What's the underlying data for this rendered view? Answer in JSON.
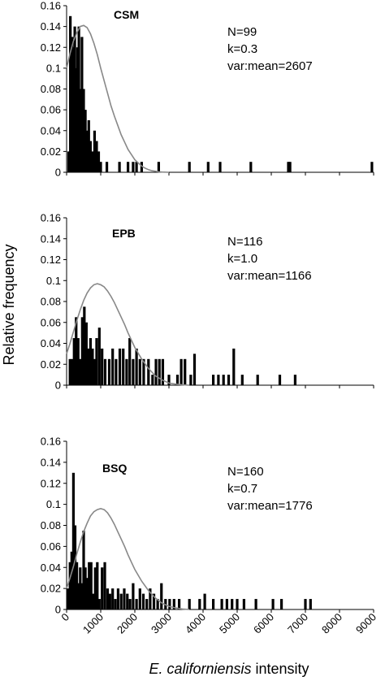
{
  "chart_data": {
    "type": "bar",
    "ylabel": "Relative frequency",
    "xlabel_italic": "E. californiensis",
    "xlabel_rest": " intensity",
    "xlim": [
      0,
      9000
    ],
    "xticks": [
      "0",
      "1000",
      "2000",
      "3000",
      "4000",
      "5000",
      "6000",
      "7000",
      "8000",
      "9000"
    ],
    "ylim": [
      0,
      0.16
    ],
    "yticks": [
      "0",
      "0.02",
      "0.04",
      "0.06",
      "0.08",
      "0.1",
      "0.12",
      "0.14",
      "0.16"
    ],
    "panels": [
      {
        "title": "CSM",
        "stats": [
          "N=99",
          "k=0.3",
          "var:mean=2607"
        ],
        "bars": [
          [
            60,
            0.02
          ],
          [
            110,
            0.15
          ],
          [
            160,
            0.13
          ],
          [
            200,
            0.12
          ],
          [
            240,
            0.14
          ],
          [
            280,
            0.1
          ],
          [
            320,
            0.12
          ],
          [
            360,
            0.14
          ],
          [
            400,
            0.08
          ],
          [
            450,
            0.13
          ],
          [
            500,
            0.08
          ],
          [
            550,
            0.06
          ],
          [
            600,
            0.04
          ],
          [
            650,
            0.05
          ],
          [
            700,
            0.03
          ],
          [
            760,
            0.02
          ],
          [
            820,
            0.04
          ],
          [
            880,
            0.03
          ],
          [
            940,
            0.02
          ],
          [
            1000,
            0.01
          ],
          [
            1180,
            0.01
          ],
          [
            1550,
            0.01
          ],
          [
            1800,
            0.01
          ],
          [
            1950,
            0.01
          ],
          [
            2050,
            0.01
          ],
          [
            2200,
            0.01
          ],
          [
            2700,
            0.01
          ],
          [
            3600,
            0.01
          ],
          [
            4150,
            0.01
          ],
          [
            4500,
            0.01
          ],
          [
            5400,
            0.01
          ],
          [
            6500,
            0.01
          ],
          [
            6550,
            0.01
          ],
          [
            8950,
            0.01
          ]
        ],
        "curve": [
          [
            0,
            0.1
          ],
          [
            100,
            0.114
          ],
          [
            200,
            0.126
          ],
          [
            300,
            0.134
          ],
          [
            400,
            0.14
          ],
          [
            500,
            0.141
          ],
          [
            600,
            0.139
          ],
          [
            700,
            0.133
          ],
          [
            800,
            0.124
          ],
          [
            900,
            0.113
          ],
          [
            1000,
            0.1
          ],
          [
            1100,
            0.088
          ],
          [
            1200,
            0.076
          ],
          [
            1300,
            0.064
          ],
          [
            1400,
            0.054
          ],
          [
            1500,
            0.045
          ],
          [
            1600,
            0.036
          ],
          [
            1700,
            0.029
          ],
          [
            1800,
            0.022
          ],
          [
            1900,
            0.017
          ],
          [
            2000,
            0.012
          ],
          [
            2100,
            0.009
          ],
          [
            2200,
            0.006
          ],
          [
            2300,
            0.004
          ],
          [
            2400,
            0.0025
          ],
          [
            2500,
            0.0015
          ],
          [
            2600,
            0.001
          ],
          [
            2700,
            0.0005
          ],
          [
            2800,
            0.0002
          ],
          [
            3000,
            0
          ]
        ]
      },
      {
        "title": "EPB",
        "stats": [
          "N=116",
          "k=1.0",
          "var:mean=1166"
        ],
        "bars": [
          [
            100,
            0.025
          ],
          [
            160,
            0.025
          ],
          [
            220,
            0.045
          ],
          [
            280,
            0.065
          ],
          [
            340,
            0.045
          ],
          [
            400,
            0.025
          ],
          [
            460,
            0.065
          ],
          [
            520,
            0.075
          ],
          [
            580,
            0.06
          ],
          [
            640,
            0.035
          ],
          [
            700,
            0.045
          ],
          [
            760,
            0.035
          ],
          [
            820,
            0.025
          ],
          [
            880,
            0.045
          ],
          [
            960,
            0.055
          ],
          [
            1040,
            0.035
          ],
          [
            1130,
            0.025
          ],
          [
            1250,
            0.025
          ],
          [
            1350,
            0.035
          ],
          [
            1450,
            0.025
          ],
          [
            1560,
            0.035
          ],
          [
            1660,
            0.035
          ],
          [
            1760,
            0.025
          ],
          [
            1850,
            0.045
          ],
          [
            1950,
            0.025
          ],
          [
            2050,
            0.035
          ],
          [
            2150,
            0.025
          ],
          [
            2260,
            0.025
          ],
          [
            2400,
            0.025
          ],
          [
            2520,
            0.01
          ],
          [
            2620,
            0.025
          ],
          [
            2720,
            0.025
          ],
          [
            2820,
            0.025
          ],
          [
            3000,
            0.01
          ],
          [
            3250,
            0.01
          ],
          [
            3360,
            0.025
          ],
          [
            3470,
            0.025
          ],
          [
            3640,
            0.01
          ],
          [
            3750,
            0.03
          ],
          [
            4300,
            0.01
          ],
          [
            4450,
            0.01
          ],
          [
            4600,
            0.01
          ],
          [
            4750,
            0.01
          ],
          [
            4900,
            0.035
          ],
          [
            5150,
            0.01
          ],
          [
            5600,
            0.01
          ],
          [
            6250,
            0.01
          ],
          [
            6700,
            0.01
          ]
        ],
        "curve": [
          [
            0,
            0.03
          ],
          [
            100,
            0.04
          ],
          [
            200,
            0.051
          ],
          [
            300,
            0.062
          ],
          [
            400,
            0.072
          ],
          [
            500,
            0.081
          ],
          [
            600,
            0.088
          ],
          [
            700,
            0.093
          ],
          [
            800,
            0.096
          ],
          [
            900,
            0.097
          ],
          [
            1000,
            0.096
          ],
          [
            1100,
            0.094
          ],
          [
            1200,
            0.09
          ],
          [
            1300,
            0.085
          ],
          [
            1400,
            0.079
          ],
          [
            1500,
            0.072
          ],
          [
            1600,
            0.065
          ],
          [
            1700,
            0.058
          ],
          [
            1800,
            0.05
          ],
          [
            1900,
            0.043
          ],
          [
            2000,
            0.036
          ],
          [
            2200,
            0.025
          ],
          [
            2400,
            0.016
          ],
          [
            2600,
            0.009
          ],
          [
            2800,
            0.005
          ],
          [
            3000,
            0.002
          ],
          [
            3200,
            0.001
          ],
          [
            3400,
            0.0003
          ],
          [
            3600,
            0
          ]
        ]
      },
      {
        "title": "BSQ",
        "stats": [
          "N=160",
          "k=0.7",
          "var:mean=1776"
        ],
        "bars": [
          [
            40,
            0.02
          ],
          [
            100,
            0.045
          ],
          [
            150,
            0.055
          ],
          [
            200,
            0.13
          ],
          [
            250,
            0.08
          ],
          [
            300,
            0.045
          ],
          [
            350,
            0.025
          ],
          [
            400,
            0.04
          ],
          [
            450,
            0.025
          ],
          [
            500,
            0.075
          ],
          [
            550,
            0.04
          ],
          [
            600,
            0.03
          ],
          [
            660,
            0.045
          ],
          [
            720,
            0.045
          ],
          [
            780,
            0.015
          ],
          [
            840,
            0.04
          ],
          [
            900,
            0.045
          ],
          [
            960,
            0.01
          ],
          [
            1040,
            0.04
          ],
          [
            1120,
            0.045
          ],
          [
            1200,
            0.02
          ],
          [
            1270,
            0.015
          ],
          [
            1350,
            0.02
          ],
          [
            1430,
            0.01
          ],
          [
            1510,
            0.02
          ],
          [
            1600,
            0.015
          ],
          [
            1690,
            0.02
          ],
          [
            1780,
            0.015
          ],
          [
            1860,
            0.01
          ],
          [
            1950,
            0.025
          ],
          [
            2050,
            0.01
          ],
          [
            2150,
            0.02
          ],
          [
            2250,
            0.015
          ],
          [
            2350,
            0.01
          ],
          [
            2450,
            0.02
          ],
          [
            2560,
            0.015
          ],
          [
            2670,
            0.01
          ],
          [
            2780,
            0.025
          ],
          [
            2900,
            0.01
          ],
          [
            3020,
            0.01
          ],
          [
            3150,
            0.01
          ],
          [
            3300,
            0.01
          ],
          [
            3600,
            0.01
          ],
          [
            3900,
            0.01
          ],
          [
            4050,
            0.015
          ],
          [
            4300,
            0.01
          ],
          [
            4550,
            0.01
          ],
          [
            4700,
            0.01
          ],
          [
            4850,
            0.01
          ],
          [
            5000,
            0.01
          ],
          [
            5200,
            0.01
          ],
          [
            5550,
            0.01
          ],
          [
            6050,
            0.01
          ],
          [
            6300,
            0.01
          ],
          [
            7000,
            0.01
          ],
          [
            7150,
            0.01
          ]
        ],
        "curve": [
          [
            0,
            0.02
          ],
          [
            100,
            0.03
          ],
          [
            200,
            0.041
          ],
          [
            300,
            0.053
          ],
          [
            400,
            0.064
          ],
          [
            500,
            0.074
          ],
          [
            600,
            0.082
          ],
          [
            700,
            0.089
          ],
          [
            800,
            0.093
          ],
          [
            900,
            0.095
          ],
          [
            1000,
            0.096
          ],
          [
            1100,
            0.095
          ],
          [
            1200,
            0.092
          ],
          [
            1300,
            0.087
          ],
          [
            1400,
            0.081
          ],
          [
            1500,
            0.074
          ],
          [
            1600,
            0.067
          ],
          [
            1700,
            0.06
          ],
          [
            1800,
            0.052
          ],
          [
            1900,
            0.045
          ],
          [
            2000,
            0.038
          ],
          [
            2200,
            0.027
          ],
          [
            2400,
            0.018
          ],
          [
            2600,
            0.011
          ],
          [
            2800,
            0.006
          ],
          [
            3000,
            0.003
          ],
          [
            3200,
            0.0015
          ],
          [
            3400,
            0.0005
          ],
          [
            3600,
            0
          ]
        ]
      }
    ]
  }
}
